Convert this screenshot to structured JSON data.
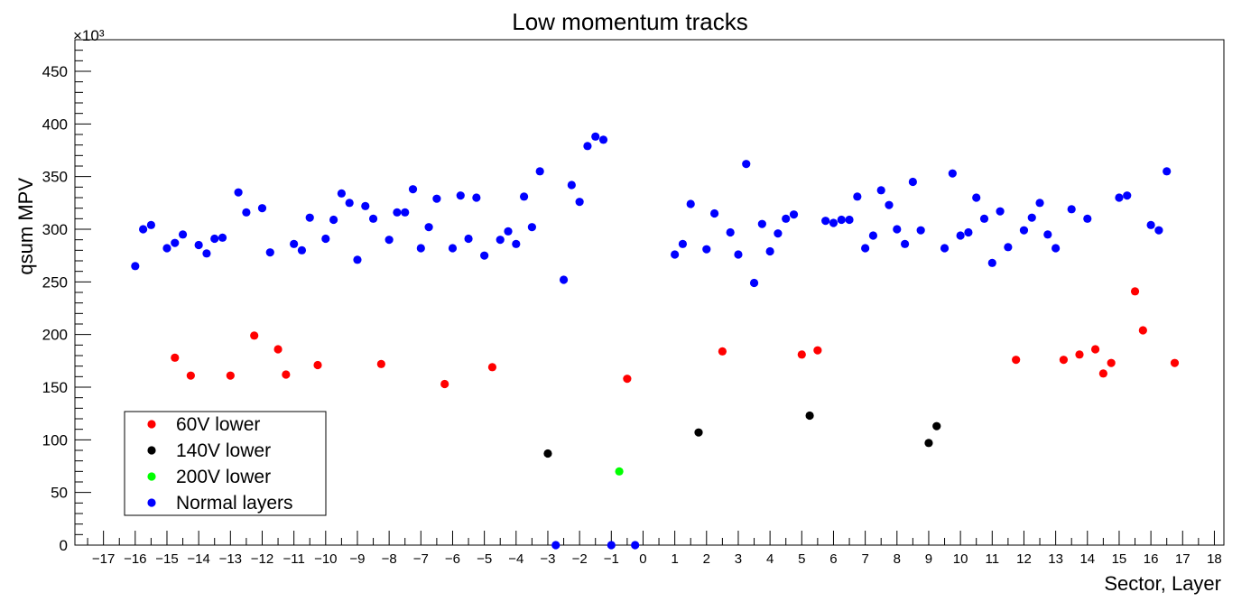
{
  "chart_data": {
    "type": "scatter",
    "title": "Low momentum tracks",
    "xlabel": "Sector, Layer",
    "ylabel": "qsum MPV",
    "y_multiplier": "×10³",
    "xlim": [
      -17.9,
      18.3
    ],
    "ylim": [
      0,
      480
    ],
    "x_ticks": [
      -17,
      -16,
      -15,
      -14,
      -13,
      -12,
      -11,
      -10,
      -9,
      -8,
      -7,
      -6,
      -5,
      -4,
      -3,
      -2,
      -1,
      0,
      1,
      2,
      3,
      4,
      5,
      6,
      7,
      8,
      9,
      10,
      11,
      12,
      13,
      14,
      15,
      16,
      17,
      18
    ],
    "x_tick_labels": [
      "−17",
      "−16",
      "−15",
      "−14",
      "−13",
      "−12",
      "−11",
      "−10",
      "−9",
      "−8",
      "−7",
      "−6",
      "−5",
      "−4",
      "−3",
      "−2",
      "−1",
      "0",
      "1",
      "2",
      "3",
      "4",
      "5",
      "6",
      "7",
      "8",
      "9",
      "10",
      "11",
      "12",
      "13",
      "14",
      "15",
      "16",
      "17",
      "18"
    ],
    "y_ticks": [
      0,
      50,
      100,
      150,
      200,
      250,
      300,
      350,
      400,
      450
    ],
    "y_tick_labels": [
      "0",
      "50",
      "100",
      "150",
      "200",
      "250",
      "300",
      "350",
      "400",
      "450"
    ],
    "grid": false,
    "legend_position": "bottom-left",
    "series": [
      {
        "name": "60V lower",
        "color": "#ff0000",
        "points": [
          [
            -14.75,
            178
          ],
          [
            -14.25,
            161
          ],
          [
            -13,
            161
          ],
          [
            -12.25,
            199
          ],
          [
            -11.5,
            186
          ],
          [
            -11.25,
            162
          ],
          [
            -10.25,
            171
          ],
          [
            -8.25,
            172
          ],
          [
            -6.25,
            153
          ],
          [
            -4.75,
            169
          ],
          [
            -0.5,
            158
          ],
          [
            2.5,
            184
          ],
          [
            5,
            181
          ],
          [
            5.5,
            185
          ],
          [
            11.75,
            176
          ],
          [
            13.25,
            176
          ],
          [
            13.75,
            181
          ],
          [
            14.25,
            186
          ],
          [
            14.5,
            163
          ],
          [
            14.75,
            173
          ],
          [
            15.5,
            241
          ],
          [
            15.75,
            204
          ],
          [
            16.75,
            173
          ]
        ]
      },
      {
        "name": "140V lower",
        "color": "#000000",
        "points": [
          [
            -3,
            87
          ],
          [
            1.75,
            107
          ],
          [
            5.25,
            123
          ],
          [
            9,
            97
          ],
          [
            9.25,
            113
          ]
        ]
      },
      {
        "name": "200V lower",
        "color": "#00ff00",
        "points": [
          [
            -0.75,
            70
          ]
        ]
      },
      {
        "name": "Normal layers",
        "color": "#0000ff",
        "points": [
          [
            -16,
            265
          ],
          [
            -15.75,
            300
          ],
          [
            -15.5,
            304
          ],
          [
            -15,
            282
          ],
          [
            -14.75,
            287
          ],
          [
            -14.5,
            295
          ],
          [
            -14,
            285
          ],
          [
            -13.75,
            277
          ],
          [
            -13.5,
            291
          ],
          [
            -13.25,
            292
          ],
          [
            -12.75,
            335
          ],
          [
            -12.5,
            316
          ],
          [
            -12,
            320
          ],
          [
            -11.75,
            278
          ],
          [
            -11,
            286
          ],
          [
            -10.75,
            280
          ],
          [
            -10.5,
            311
          ],
          [
            -10,
            291
          ],
          [
            -9.75,
            309
          ],
          [
            -9.5,
            334
          ],
          [
            -9.25,
            325
          ],
          [
            -9,
            271
          ],
          [
            -8.75,
            322
          ],
          [
            -8.5,
            310
          ],
          [
            -8,
            290
          ],
          [
            -7.75,
            316
          ],
          [
            -7.5,
            316
          ],
          [
            -7.25,
            338
          ],
          [
            -7,
            282
          ],
          [
            -6.75,
            302
          ],
          [
            -6.5,
            329
          ],
          [
            -6,
            282
          ],
          [
            -5.75,
            332
          ],
          [
            -5.5,
            291
          ],
          [
            -5.25,
            330
          ],
          [
            -5,
            275
          ],
          [
            -4.5,
            290
          ],
          [
            -4.25,
            298
          ],
          [
            -4,
            286
          ],
          [
            -3.75,
            331
          ],
          [
            -3.5,
            302
          ],
          [
            -3.25,
            355
          ],
          [
            -2.75,
            0
          ],
          [
            -2.5,
            252
          ],
          [
            -2.25,
            342
          ],
          [
            -2,
            326
          ],
          [
            -1.75,
            379
          ],
          [
            -1.5,
            388
          ],
          [
            -1.25,
            385
          ],
          [
            -1,
            0
          ],
          [
            -0.25,
            0
          ],
          [
            1,
            276
          ],
          [
            1.25,
            286
          ],
          [
            1.5,
            324
          ],
          [
            2,
            281
          ],
          [
            2.25,
            315
          ],
          [
            2.75,
            297
          ],
          [
            3,
            276
          ],
          [
            3.25,
            362
          ],
          [
            3.5,
            249
          ],
          [
            3.75,
            305
          ],
          [
            4,
            279
          ],
          [
            4.25,
            296
          ],
          [
            4.5,
            310
          ],
          [
            4.75,
            314
          ],
          [
            5.75,
            308
          ],
          [
            6,
            306
          ],
          [
            6.25,
            309
          ],
          [
            6.5,
            309
          ],
          [
            6.75,
            331
          ],
          [
            7,
            282
          ],
          [
            7.25,
            294
          ],
          [
            7.5,
            337
          ],
          [
            7.75,
            323
          ],
          [
            8,
            300
          ],
          [
            8.25,
            286
          ],
          [
            8.5,
            345
          ],
          [
            8.75,
            299
          ],
          [
            9.5,
            282
          ],
          [
            9.75,
            353
          ],
          [
            10,
            294
          ],
          [
            10.25,
            297
          ],
          [
            10.5,
            330
          ],
          [
            10.75,
            310
          ],
          [
            11,
            268
          ],
          [
            11.25,
            317
          ],
          [
            11.5,
            283
          ],
          [
            12,
            299
          ],
          [
            12.25,
            311
          ],
          [
            12.5,
            325
          ],
          [
            12.75,
            295
          ],
          [
            13,
            282
          ],
          [
            13.5,
            319
          ],
          [
            14,
            310
          ],
          [
            15,
            330
          ],
          [
            15.25,
            332
          ],
          [
            16,
            304
          ],
          [
            16.25,
            299
          ],
          [
            16.5,
            355
          ]
        ]
      }
    ]
  }
}
